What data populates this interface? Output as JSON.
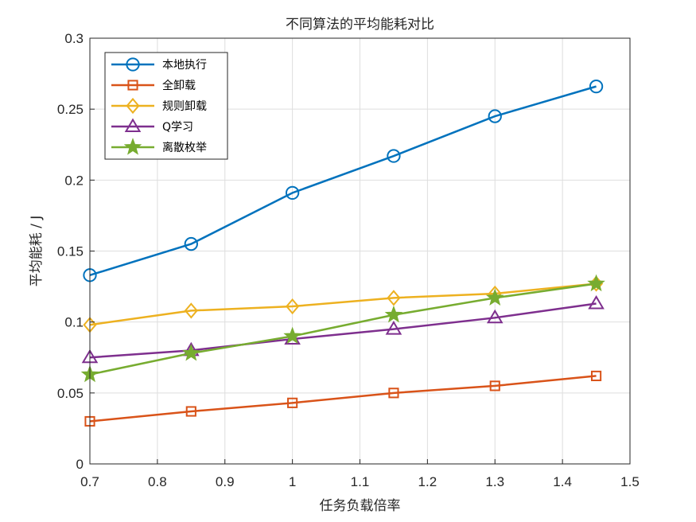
{
  "chart_data": {
    "type": "line",
    "title": "不同算法的平均能耗对比",
    "xlabel": "任务负载倍率",
    "ylabel": "平均能耗 / J",
    "xlim": [
      0.7,
      1.5
    ],
    "ylim": [
      0,
      0.3
    ],
    "xticks": [
      0.7,
      0.8,
      0.9,
      1,
      1.1,
      1.2,
      1.3,
      1.4,
      1.5
    ],
    "xtick_labels": [
      "0.7",
      "0.8",
      "0.9",
      "1",
      "1.1",
      "1.2",
      "1.3",
      "1.4",
      "1.5"
    ],
    "yticks": [
      0,
      0.05,
      0.1,
      0.15,
      0.2,
      0.25,
      0.3
    ],
    "ytick_labels": [
      "0",
      "0.05",
      "0.1",
      "0.15",
      "0.2",
      "0.25",
      "0.3"
    ],
    "grid": true,
    "legend_position": "top-left",
    "x": [
      0.7,
      0.85,
      1.0,
      1.15,
      1.3,
      1.45
    ],
    "series": [
      {
        "name": "本地执行",
        "color": "#0072BD",
        "marker": "circle",
        "values": [
          0.133,
          0.155,
          0.191,
          0.217,
          0.245,
          0.266
        ]
      },
      {
        "name": "全卸载",
        "color": "#D95319",
        "marker": "square",
        "values": [
          0.03,
          0.037,
          0.043,
          0.05,
          0.055,
          0.062
        ]
      },
      {
        "name": "规则卸载",
        "color": "#EDB120",
        "marker": "diamond",
        "values": [
          0.098,
          0.108,
          0.111,
          0.117,
          0.12,
          0.127
        ]
      },
      {
        "name": "Q学习",
        "color": "#7E2F8E",
        "marker": "triangle",
        "values": [
          0.075,
          0.08,
          0.088,
          0.095,
          0.103,
          0.113
        ]
      },
      {
        "name": "离散枚举",
        "color": "#77AC30",
        "marker": "star",
        "values": [
          0.063,
          0.078,
          0.09,
          0.105,
          0.117,
          0.127
        ]
      }
    ]
  }
}
